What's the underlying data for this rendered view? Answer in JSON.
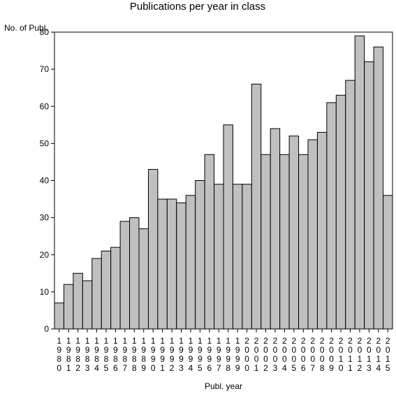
{
  "chart_data": {
    "type": "bar",
    "title": "Publications per year in class",
    "ylabel": "No. of Publ.",
    "xlabel": "Publ. year",
    "ylim": [
      0,
      80
    ],
    "yticks": [
      0,
      10,
      20,
      30,
      40,
      50,
      60,
      70,
      80
    ],
    "categories": [
      "1980",
      "1981",
      "1982",
      "1983",
      "1984",
      "1985",
      "1986",
      "1987",
      "1988",
      "1989",
      "1990",
      "1991",
      "1992",
      "1993",
      "1994",
      "1995",
      "1996",
      "1997",
      "1998",
      "1999",
      "2000",
      "2001",
      "2002",
      "2003",
      "2004",
      "2005",
      "2006",
      "2007",
      "2008",
      "2009",
      "2010",
      "2011",
      "2012",
      "2013",
      "2014",
      "2015"
    ],
    "values": [
      7,
      12,
      15,
      13,
      19,
      21,
      22,
      29,
      30,
      27,
      43,
      35,
      35,
      34,
      36,
      40,
      47,
      39,
      55,
      39,
      39,
      66,
      47,
      54,
      47,
      52,
      47,
      51,
      53,
      61,
      63,
      67,
      79,
      72,
      76,
      36
    ],
    "bar_color": "#c0c0c0",
    "edge_color": "#000000",
    "grid": false
  }
}
